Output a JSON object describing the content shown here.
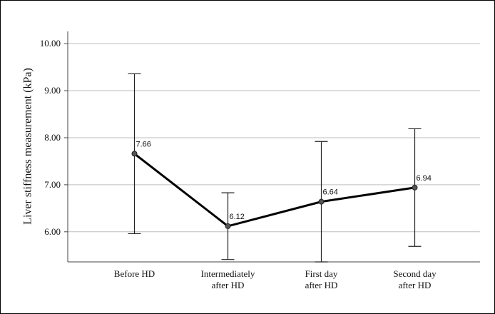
{
  "chart_data": {
    "type": "line",
    "y_label": "Liver stiffness measurement (kPa)",
    "categories": [
      "Before HD",
      "Intermediately\nafter HD",
      "First day\nafter HD",
      "Second day\nafter HD"
    ],
    "values": [
      7.66,
      6.12,
      6.64,
      6.94
    ],
    "errors": [
      1.7,
      0.71,
      1.28,
      1.25
    ],
    "color": "#000000",
    "ylim": [
      5.36,
      10.26
    ],
    "yticks": [
      {
        "value": 6,
        "label": "6.00"
      },
      {
        "value": 7,
        "label": "7.00"
      },
      {
        "value": 8,
        "label": "8.00"
      },
      {
        "value": 9,
        "label": "9.00"
      },
      {
        "value": 10,
        "label": "10.00"
      }
    ],
    "grid": true
  }
}
